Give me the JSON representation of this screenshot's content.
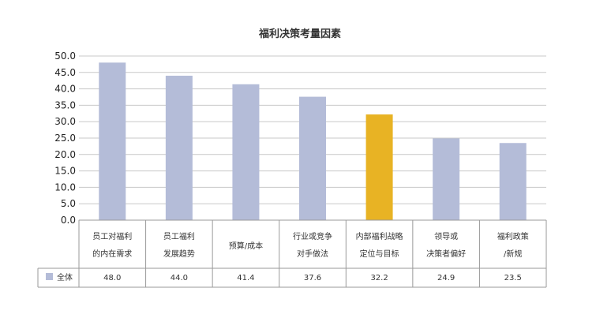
{
  "chart_data": {
    "type": "bar",
    "title": "福利决策考量因素",
    "categories": [
      [
        "员工对福利",
        "的内在需求"
      ],
      [
        "员工福利",
        "发展趋势"
      ],
      [
        "预算/成本"
      ],
      [
        "行业或竞争",
        "对手做法"
      ],
      [
        "内部福利战略",
        "定位与目标"
      ],
      [
        "领导或",
        "决策者偏好"
      ],
      [
        "福利政策",
        "/新规"
      ]
    ],
    "series": [
      {
        "name": "全体",
        "values": [
          48.0,
          44.0,
          41.4,
          37.6,
          32.2,
          24.9,
          23.5
        ],
        "labels": [
          "48.0",
          "44.0",
          "41.4",
          "37.6",
          "32.2",
          "24.9",
          "23.5"
        ]
      }
    ],
    "highlight_index": 4,
    "ylim": [
      0,
      50
    ],
    "yticks": [
      "0.0",
      "5.0",
      "10.0",
      "15.0",
      "20.0",
      "25.0",
      "30.0",
      "35.0",
      "40.0",
      "45.0",
      "50.0"
    ],
    "grid": true,
    "legend": "data-table-left",
    "colors": {
      "bar": "#b4bcd8",
      "highlight": "#e8b324",
      "grid": "#c8c8c8",
      "axis": "#9a9a9a"
    }
  }
}
